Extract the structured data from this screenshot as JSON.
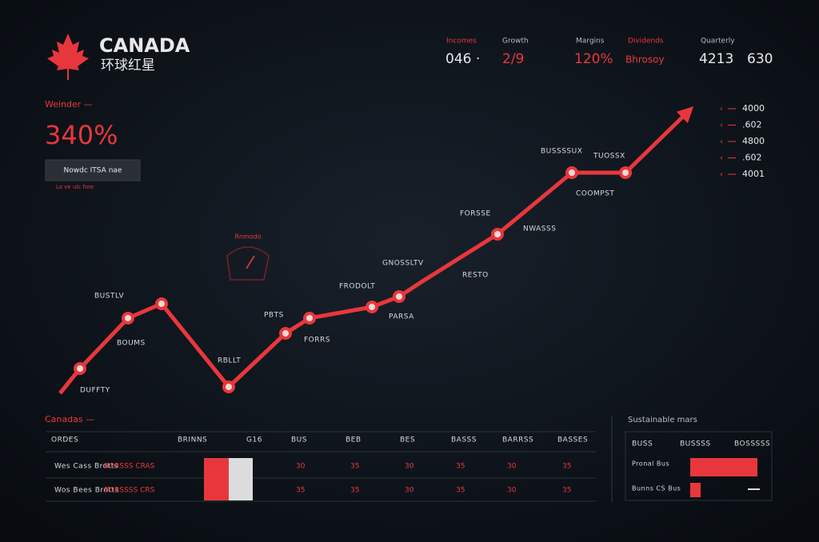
{
  "header": {
    "brand": "CANADA",
    "subtitle": "环球红星"
  },
  "top_stats": [
    {
      "label": "Incomes",
      "value": "046 ·"
    },
    {
      "label": "Growth",
      "value": "2/9"
    },
    {
      "label": "Margins",
      "value": "120%"
    },
    {
      "label": "Dividends",
      "value": "Bhrosoy"
    },
    {
      "label": "Quarterly",
      "value": "4213"
    },
    {
      "value": "630"
    }
  ],
  "kpi": {
    "label": "Weinder —",
    "value": "340%",
    "button": "Nowdc ITSA nae",
    "note": "Lo ve ulc fore"
  },
  "gauge": {
    "label": "Rnmodo"
  },
  "right_list": [
    "4000",
    ".602",
    "4800",
    ".602",
    "4001"
  ],
  "trend_labels": [
    "BUSTLV",
    "BOUMS",
    "DUFFTY",
    "RBLLT",
    "PBTS",
    "FORRS",
    "FRODOLT",
    "PARSA",
    "GNOSSLTV",
    "RESTO",
    "FORSSE",
    "NWASSS",
    "BUSSSSUX",
    "TUOSSX",
    "COOMPST"
  ],
  "table": {
    "title": "Canadas —",
    "header": [
      "ORDES",
      "BRINNS",
      "G16",
      "BUS",
      "BEB",
      "BES",
      "BASSS",
      "BARRSS",
      "BASSES"
    ],
    "rows": [
      [
        "Wes Cass Brotts",
        "BORSSS CRAS",
        "",
        "30",
        "35",
        "30",
        "35",
        "30",
        "35"
      ],
      [
        "Wos Bees Brotts",
        "BORSSSS CRS",
        "",
        "35",
        "35",
        "30",
        "35",
        "30",
        "35"
      ]
    ]
  },
  "side_panel": {
    "title": "Sustainable mars",
    "header": [
      "BUSS",
      "BUSSSS",
      "BOSSSSS"
    ],
    "rows": [
      "Pronal Bus",
      "Bunns CS Bus"
    ]
  }
}
